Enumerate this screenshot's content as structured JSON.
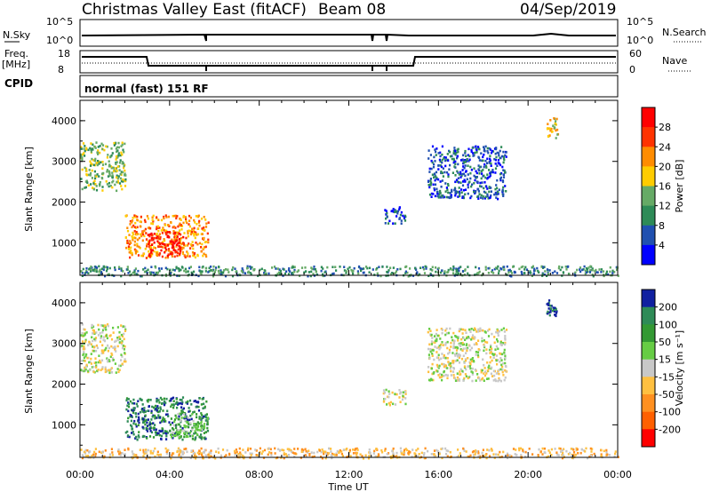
{
  "header": {
    "station": "Christmas Valley East (fitACF)",
    "beam": "Beam 08",
    "date": "04/Sep/2019"
  },
  "strip": {
    "nsky_label": "N.Sky",
    "nsearch_label": "N.Search",
    "freq_label_1": "Freq.",
    "freq_label_2": "[MHz]",
    "nave_label": "Nave",
    "cpid_label": "CPID",
    "nsky_ticks": [
      "10^5",
      "10^0"
    ],
    "nsearch_ticks": [
      "10^5",
      "10^0"
    ],
    "freq_ticks": [
      "18",
      "8"
    ],
    "nave_ticks": [
      "60",
      "0"
    ],
    "cpid_text": "normal (fast) 151 RF"
  },
  "axes": {
    "ylabel": "Slant Range [km]",
    "xlabel": "Time UT",
    "yticks": [
      "1000",
      "2000",
      "3000",
      "4000"
    ],
    "xticks": [
      "00:00",
      "04:00",
      "08:00",
      "12:00",
      "16:00",
      "20:00",
      "00:00"
    ]
  },
  "chart_data": [
    {
      "type": "heatmap",
      "panel": "power",
      "colorbar_label": "Power [dB]",
      "colorbar_ticks": [
        "28",
        "24",
        "20",
        "16",
        "12",
        "8",
        "4"
      ],
      "colors": [
        "#0000ff",
        "#2050b0",
        "#2e8b57",
        "#66aa66",
        "#ffcc00",
        "#ff8c00",
        "#ff3300",
        "#ff0000"
      ],
      "x_range": [
        0,
        24
      ],
      "y_range": [
        200,
        4500
      ],
      "regions": [
        {
          "t0": 0.0,
          "t1": 2.0,
          "r0": 2300,
          "r1": 3500,
          "level": 3
        },
        {
          "t0": 2.0,
          "t1": 5.7,
          "r0": 650,
          "r1": 1700,
          "level": 5
        },
        {
          "t0": 3.0,
          "t1": 4.6,
          "r0": 700,
          "r1": 1300,
          "level": 7
        },
        {
          "t0": 15.5,
          "t1": 19.0,
          "r0": 2100,
          "r1": 3400,
          "level": 1
        },
        {
          "t0": 13.5,
          "t1": 14.5,
          "r0": 1500,
          "r1": 1900,
          "level": 1
        },
        {
          "t0": 20.8,
          "t1": 21.3,
          "r0": 3600,
          "r1": 4100,
          "level": 4
        },
        {
          "t0": 0.0,
          "t1": 24.0,
          "r0": 200,
          "r1": 450,
          "level": 2
        }
      ]
    },
    {
      "type": "heatmap",
      "panel": "velocity",
      "colorbar_label": "Velocity [m s⁻¹]",
      "colorbar_ticks": [
        "200",
        "100",
        "50",
        "15",
        "-15",
        "-50",
        "-100",
        "-200"
      ],
      "colors": [
        "#1020a0",
        "#2e8b57",
        "#339933",
        "#66cc44",
        "#c8c8c8",
        "#ffc040",
        "#ff9020",
        "#ff6000",
        "#ff0000"
      ],
      "x_range": [
        0,
        24
      ],
      "y_range": [
        200,
        4500
      ],
      "regions": [
        {
          "t0": 0.0,
          "t1": 2.0,
          "r0": 2300,
          "r1": 3500,
          "level": 4
        },
        {
          "t0": 2.0,
          "t1": 5.7,
          "r0": 650,
          "r1": 1700,
          "level": 1
        },
        {
          "t0": 4.0,
          "t1": 5.7,
          "r0": 700,
          "r1": 1300,
          "level": 3
        },
        {
          "t0": 15.5,
          "t1": 19.0,
          "r0": 2100,
          "r1": 3400,
          "level": 4
        },
        {
          "t0": 13.5,
          "t1": 14.5,
          "r0": 1500,
          "r1": 1900,
          "level": 4
        },
        {
          "t0": 20.8,
          "t1": 21.3,
          "r0": 3700,
          "r1": 4100,
          "level": 0
        },
        {
          "t0": 0.0,
          "t1": 24.0,
          "r0": 200,
          "r1": 450,
          "level": 5
        }
      ]
    }
  ]
}
